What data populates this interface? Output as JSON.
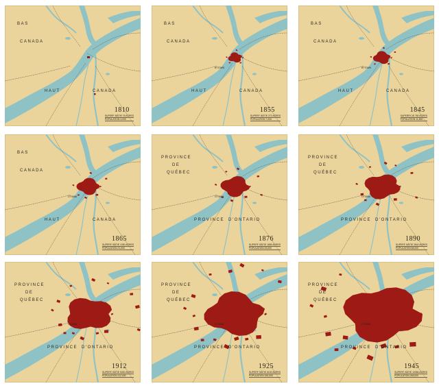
{
  "colors": {
    "paper": "#ead49c",
    "water": "#8fc2c5",
    "urban": "#9e1a14",
    "roads": "#5f5748",
    "text": "#2f2a22"
  },
  "panels": [
    {
      "year": "1810",
      "labels": [
        "BAS",
        "CANADA",
        "HAUT",
        "CANADA"
      ],
      "place": "",
      "stat_area": "SUPERF. BÂTIE  76  ACRES",
      "stat_pop": "POPULATION  3,000",
      "urban_level": 0.02
    },
    {
      "year": "1855",
      "labels": [
        "BAS",
        "CANADA",
        "HAUT",
        "CANADA"
      ],
      "place": "BYTOWN",
      "stat_area": "SUPERF. BÂTIE  272  ACRES",
      "stat_pop": "POPULATION  7,000",
      "urban_level": 0.07
    },
    {
      "year": "1845",
      "labels": [
        "BAS",
        "CANADA",
        "HAUT",
        "CANADA"
      ],
      "place": "BYTOWN",
      "stat_area": "SUPERFICIE  780  ACRES",
      "stat_pop": "POPULATION  11,800",
      "urban_level": 0.12
    },
    {
      "year": "1865",
      "labels": [
        "BAS",
        "CANADA",
        "HAUT",
        "CANADA"
      ],
      "place": "OTTAWA",
      "stat_area": "SUPERF. BÂTIE  1050  ACRES",
      "stat_pop": "POPULATION  21,000",
      "urban_level": 0.2
    },
    {
      "year": "1876",
      "labels": [
        "PROVINCE",
        "DE",
        "QUÉBEC",
        "PROVINCE",
        "D'ONTARIO"
      ],
      "place": "OTTAWA",
      "stat_area": "SUPERF. BÂTIE  1855  ACRES",
      "stat_pop": "POPULATION  33,000",
      "urban_level": 0.28
    },
    {
      "year": "1890",
      "labels": [
        "PROVINCE",
        "DE",
        "QUÉBEC",
        "PROVINCE",
        "D'ONTARIO"
      ],
      "place": "OTTAWA",
      "stat_area": "SUPERF. BÂTIE  2640  ACRES",
      "stat_pop": "POPULATION  58,000",
      "urban_level": 0.38
    },
    {
      "year": "1912",
      "labels": [
        "PROVINCE",
        "DE",
        "QUÉBEC",
        "PROVINCE",
        "D'ONTARIO"
      ],
      "place": "OTTAWA",
      "stat_area": "SUPERF. BÂTIE  5300  ACRES",
      "stat_pop": "POPULATION  112,000",
      "urban_level": 0.55
    },
    {
      "year": "1925",
      "labels": [
        "PROVINCE",
        "DE",
        "QUÉBEC",
        "PROVINCE",
        "D'ONTARIO"
      ],
      "place": "OTTAWA",
      "stat_area": "SUPERF. BÂTIE  6100  ACRES",
      "stat_pop": "POPULATION  150,000",
      "urban_level": 0.75
    },
    {
      "year": "1945",
      "labels": [
        "PROVINCE",
        "DE",
        "QUÉBEC",
        "PROVINCE",
        "D'ONTARIO"
      ],
      "place": "OTTAWA",
      "stat_area": "SUPERF. BÂTIE  10084  ACRES",
      "stat_pop": "POPULATION  248,000",
      "urban_level": 1.0
    }
  ]
}
